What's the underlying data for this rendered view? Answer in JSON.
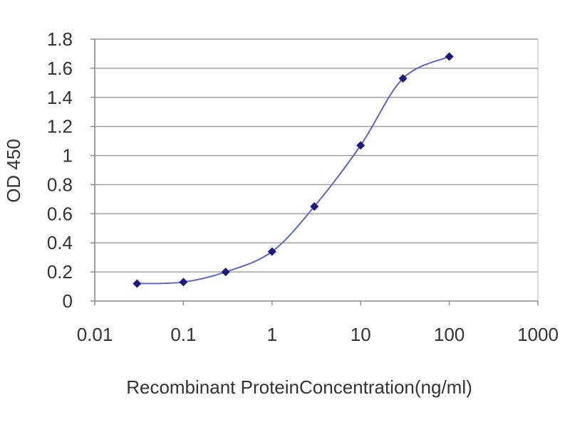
{
  "chart_data": {
    "type": "line",
    "xscale": "log",
    "x": [
      0.03,
      0.1,
      0.3,
      1,
      3,
      10,
      30,
      100
    ],
    "series": [
      {
        "values": [
          0.12,
          0.13,
          0.2,
          0.34,
          0.65,
          1.07,
          1.53,
          1.68
        ]
      }
    ],
    "xlim": [
      0.01,
      1000
    ],
    "ylim": [
      0,
      1.8
    ],
    "xticks": [
      0.01,
      0.1,
      1,
      10,
      100,
      1000
    ],
    "xtick_labels": [
      "0.01",
      "0.1",
      "1",
      "10",
      "100",
      "1000"
    ],
    "yticks": [
      0,
      0.2,
      0.4,
      0.6,
      0.8,
      1,
      1.2,
      1.4,
      1.6,
      1.8
    ],
    "ytick_labels": [
      "0",
      "0.2",
      "0.4",
      "0.6",
      "0.8",
      "1",
      "1.2",
      "1.4",
      "1.6",
      "1.8"
    ],
    "xlabel": "Recombinant ProteinConcentration(ng/ml)",
    "ylabel": "OD 450",
    "grid": "horizontal",
    "line_color": "#5a66c8",
    "marker_color": "#1a1a80",
    "gridline_color": "#9a9a9a",
    "axis_color": "#888888"
  }
}
